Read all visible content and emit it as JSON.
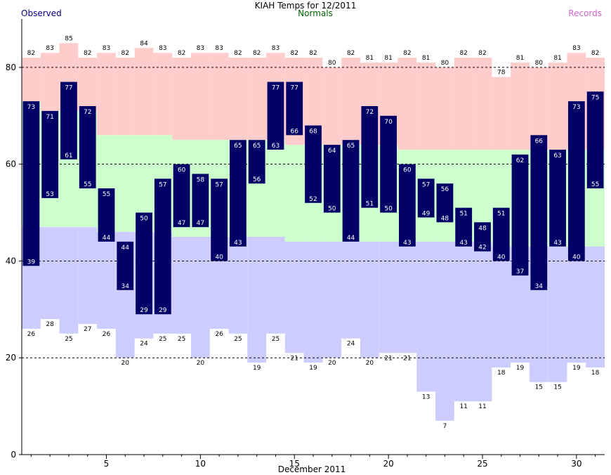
{
  "chart_data": {
    "type": "bar",
    "title": "KIAH Temps for 12/2011",
    "legend": {
      "observed": "Observed",
      "normals": "Normals",
      "records": "Records"
    },
    "xlabel": "December 2011",
    "ylabel": "",
    "xlim": [
      0.5,
      31.5
    ],
    "ylim": [
      0,
      90
    ],
    "x_ticks": [
      5,
      10,
      15,
      20,
      25,
      30
    ],
    "y_ticks": [
      0,
      20,
      40,
      60,
      80
    ],
    "gridlines_y": [
      20,
      40,
      60,
      80
    ],
    "days": [
      1,
      2,
      3,
      4,
      5,
      6,
      7,
      8,
      9,
      10,
      11,
      12,
      13,
      14,
      15,
      16,
      17,
      18,
      19,
      20,
      21,
      22,
      23,
      24,
      25,
      26,
      27,
      28,
      29,
      30,
      31
    ],
    "observed_high": [
      73,
      71,
      77,
      72,
      55,
      44,
      50,
      57,
      60,
      58,
      57,
      65,
      65,
      77,
      77,
      68,
      64,
      65,
      72,
      70,
      60,
      57,
      56,
      51,
      48,
      51,
      62,
      66,
      63,
      73,
      75
    ],
    "observed_low": [
      39,
      53,
      61,
      55,
      44,
      34,
      29,
      29,
      47,
      47,
      40,
      43,
      56,
      63,
      66,
      52,
      50,
      44,
      51,
      50,
      43,
      49,
      48,
      43,
      42,
      40,
      37,
      34,
      43,
      40,
      55
    ],
    "normal_high": [
      73,
      71,
      71,
      71,
      66,
      66,
      66,
      66,
      65,
      65,
      65,
      65,
      65,
      65,
      64,
      64,
      64,
      64,
      64,
      64,
      63,
      63,
      63,
      63,
      63,
      63,
      63,
      63,
      63,
      63,
      63
    ],
    "normal_low": [
      47,
      47,
      47,
      47,
      46,
      46,
      46,
      46,
      45,
      45,
      45,
      45,
      45,
      45,
      44,
      44,
      44,
      44,
      44,
      44,
      44,
      44,
      44,
      44,
      44,
      43,
      43,
      43,
      43,
      43,
      43
    ],
    "record_high": [
      82,
      83,
      85,
      82,
      83,
      82,
      84,
      83,
      82,
      83,
      83,
      82,
      82,
      83,
      82,
      82,
      80,
      82,
      81,
      81,
      82,
      81,
      80,
      82,
      82,
      78,
      81,
      80,
      81,
      83,
      82
    ],
    "record_low": [
      26,
      28,
      25,
      27,
      26,
      20,
      24,
      25,
      25,
      20,
      26,
      25,
      19,
      25,
      21,
      19,
      20,
      24,
      20,
      21,
      21,
      13,
      7,
      11,
      11,
      18,
      19,
      15,
      15,
      19,
      18
    ],
    "colors": {
      "observed": "#000066",
      "normal_band": "#ccffcc",
      "record_high_band": "#ffcccc",
      "record_low_band": "#ccccff",
      "grid": "#000000",
      "observed_legend": "#000080",
      "normals_legend": "#006600",
      "records_legend": "#cc66cc",
      "observed_label": "#ffffff",
      "record_label": "#000000"
    }
  }
}
